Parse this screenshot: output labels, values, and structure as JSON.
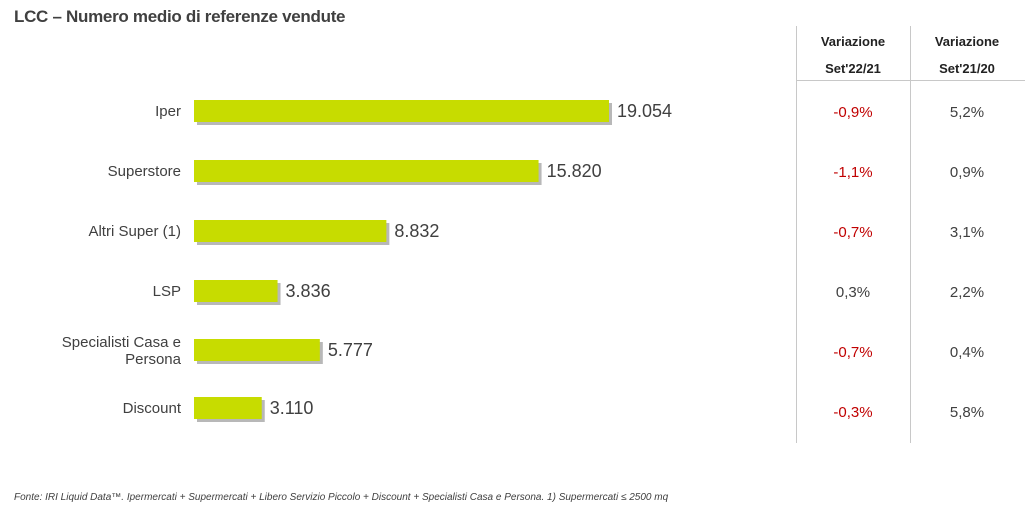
{
  "title": "LCC – Numero medio di referenze vendute",
  "columns": [
    {
      "line1": "Variazione",
      "line2": "Set'22/21"
    },
    {
      "line1": "Variazione",
      "line2": "Set'21/20"
    }
  ],
  "chart_data": {
    "type": "bar",
    "orientation": "horizontal",
    "categories": [
      [
        "Iper"
      ],
      [
        "Superstore"
      ],
      [
        "Altri Super (1)"
      ],
      [
        "LSP"
      ],
      [
        "Specialisti Casa e",
        "Persona"
      ],
      [
        "Discount"
      ]
    ],
    "values": [
      19054,
      15820,
      8832,
      3836,
      5777,
      3110
    ],
    "value_labels": [
      "19.054",
      "15.820",
      "8.832",
      "3.836",
      "5.777",
      "3.110"
    ],
    "bar_color": "#c7dc00"
  },
  "table": {
    "rows": [
      {
        "var_22_21": "-0,9%",
        "var_21_20": "5,2%"
      },
      {
        "var_22_21": "-1,1%",
        "var_21_20": "0,9%"
      },
      {
        "var_22_21": "-0,7%",
        "var_21_20": "3,1%"
      },
      {
        "var_22_21": "0,3%",
        "var_21_20": "2,2%"
      },
      {
        "var_22_21": "-0,7%",
        "var_21_20": "0,4%"
      },
      {
        "var_22_21": "-0,3%",
        "var_21_20": "5,8%"
      }
    ],
    "negative_color": "#c00000",
    "positive_color": "#404040"
  },
  "footer": "Fonte: IRI Liquid Data™.  Ipermercati + Supermercati + Libero Servizio Piccolo + Discount + Specialisti Casa e Persona. 1) Supermercati ≤ 2500 mq"
}
